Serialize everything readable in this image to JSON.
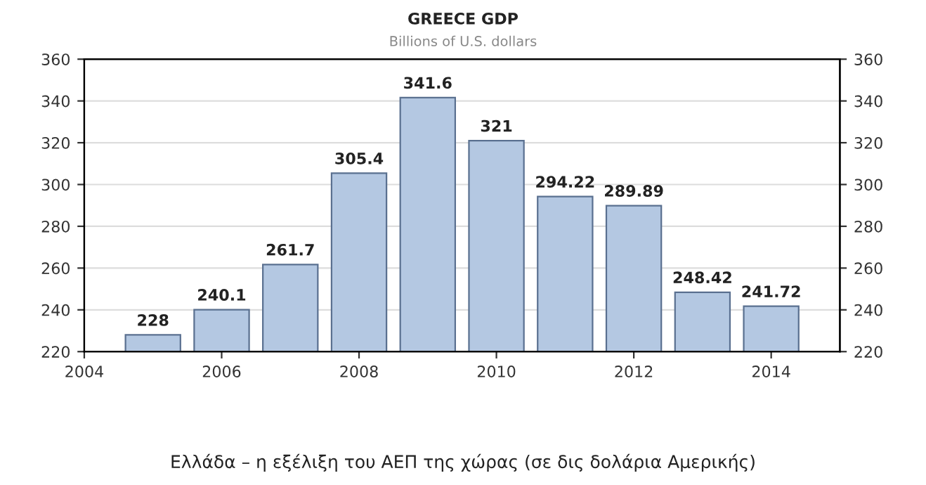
{
  "chart_data": {
    "type": "bar",
    "title": "GREECE GDP",
    "subtitle": "Billions of U.S. dollars",
    "x": [
      2005,
      2006,
      2007,
      2008,
      2009,
      2010,
      2011,
      2012,
      2013,
      2014
    ],
    "values": [
      228,
      240.1,
      261.7,
      305.4,
      341.6,
      321,
      294.22,
      289.89,
      248.42,
      241.72
    ],
    "color": "#b4c8e2",
    "xlim": [
      2004,
      2015
    ],
    "xticks": [
      2004,
      2006,
      2008,
      2010,
      2012,
      2014
    ],
    "ylim": [
      220,
      360
    ],
    "yticks": [
      220,
      240,
      260,
      280,
      300,
      320,
      340,
      360
    ],
    "y2lim": [
      220,
      360
    ],
    "y2ticks": [
      220,
      240,
      260,
      280,
      300,
      320,
      340,
      360
    ],
    "grid": "y",
    "data_labels": true,
    "legend": false,
    "annotations": [
      "Ελλάδα – η εξέλιξη του ΑΕΠ της χώρας (σε δις δολάρια Αμερικής)"
    ]
  }
}
